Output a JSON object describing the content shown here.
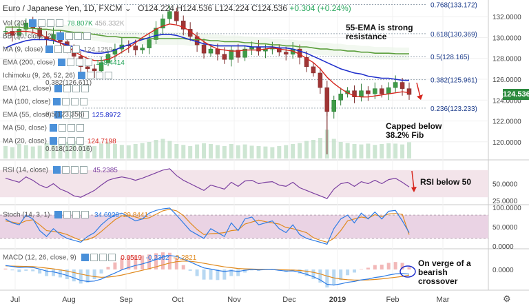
{
  "header": {
    "symbol": "Euro / Japanese Yen, 1D, FXCM",
    "ohlc": "O124.224 H124.536 L124.224 C124.536",
    "change": "+0.304 (+0.24%)"
  },
  "indicators_main": [
    {
      "label": "Vol (20)",
      "value": "78.807K",
      "value2": "456.332K",
      "color": "#26a65b"
    },
    {
      "label": "BB (20, close, 2)",
      "value": "",
      "color": "#888"
    },
    {
      "label": "MA (9, close)",
      "value": "124.1259",
      "color": "#888"
    },
    {
      "label": "EMA (200, close)",
      "value": "128.4414",
      "color": "#26a65b"
    },
    {
      "label": "Ichimoku (9, 26, 52, 26)",
      "value": "",
      "color": "#888"
    },
    {
      "label": "EMA (21, close)",
      "value": "",
      "color": "#888"
    },
    {
      "label": "MA (100, close)",
      "value": "",
      "color": "#888"
    },
    {
      "label": "EMA (55, close)",
      "value": "125.8972",
      "color": "#1f2fcc"
    },
    {
      "label": "MA (50, close)",
      "value": "",
      "color": "#888"
    },
    {
      "label": "MA (20, close)",
      "value": "124.7198",
      "color": "#d6261e"
    }
  ],
  "fib_inline": [
    {
      "text": "0.382(126.611)"
    },
    {
      "text": "0.5(123.356)"
    },
    {
      "text": "0.618(120.016)"
    }
  ],
  "annotations": {
    "ema_note": "55-EMA is strong resistance",
    "fib_note": "Capped below 38.2% Fib",
    "rsi_note": "RSI below 50",
    "macd_note": "On verge of a bearish crossover"
  },
  "last_price": "124.536",
  "panes": {
    "rsi": {
      "label": "RSI (14, close)",
      "value": "45.2385",
      "value_color": "#7b3fa0"
    },
    "stoch": {
      "label": "Stoch (14, 3, 1)",
      "k": "34.6920",
      "d": "29.8441",
      "k_color": "#2c7be5",
      "d_color": "#e08a1e"
    },
    "macd": {
      "label": "MACD (12, 26, close, 9)",
      "hist": "0.0519",
      "macd": "-0.2302",
      "signal": "-0.2821",
      "hist_color": "#d6261e",
      "macd_color": "#2c7be5",
      "signal_color": "#e08a1e"
    }
  },
  "chart_data": {
    "type": "line",
    "title": "Euro / Japanese Yen, 1D, FXCM",
    "x_ticks": [
      "Jul",
      "Aug",
      "Sep",
      "Oct",
      "Nov",
      "Dec",
      "2019",
      "Feb",
      "Mar"
    ],
    "price_axis": {
      "ticks": [
        120.0,
        122.0,
        124.0,
        126.0,
        128.0,
        130.0,
        132.0
      ],
      "range": [
        118.4,
        133.6
      ]
    },
    "fib_levels": [
      {
        "ratio": "0.768",
        "value": 133.172,
        "label": "0.768(133.172)"
      },
      {
        "ratio": "0.618",
        "value": 130.369,
        "label": "0.618(130.369)"
      },
      {
        "ratio": "0.5",
        "value": 128.165,
        "label": "0.5(128.165)"
      },
      {
        "ratio": "0.382",
        "value": 125.961,
        "label": "0.382(125.961)"
      },
      {
        "ratio": "0.236",
        "value": 123.233,
        "label": "0.236(123.233)"
      }
    ],
    "series": [
      {
        "name": "Close",
        "color": "#333333",
        "values": [
          130.6,
          130.2,
          130.8,
          131.4,
          130.9,
          130.1,
          129.8,
          130.3,
          129.6,
          129.0,
          128.2,
          127.2,
          127.0,
          126.8,
          127.6,
          128.4,
          128.9,
          129.3,
          129.2,
          128.8,
          129.0,
          129.8,
          130.9,
          131.8,
          132.5,
          131.6,
          130.8,
          130.1,
          129.3,
          128.5,
          128.9,
          128.4,
          127.9,
          128.8,
          128.1,
          128.9,
          129.1,
          128.7,
          128.9,
          129.0,
          128.6,
          128.4,
          128.9,
          128.1,
          127.2,
          126.6,
          125.2,
          122.9,
          124.0,
          124.6,
          124.9,
          124.3,
          124.9,
          124.6,
          125.1,
          124.6,
          125.2,
          125.7,
          125.1,
          124.536
        ]
      },
      {
        "name": "EMA 55",
        "color": "#1f2fcc",
        "values": [
          129.0,
          129.3,
          129.5,
          129.7,
          129.8,
          129.8,
          129.8,
          129.7,
          129.5,
          129.3,
          129.1,
          128.8,
          128.6,
          128.5,
          128.5,
          128.6,
          128.8,
          129.1,
          129.3,
          129.6,
          129.8,
          130.0,
          130.2,
          130.3,
          130.3,
          130.2,
          130.0,
          129.8,
          129.6,
          129.4,
          129.3,
          129.2,
          129.2,
          129.2,
          129.2,
          129.2,
          129.1,
          129.1,
          129.1,
          129.1,
          129.0,
          129.0,
          128.9,
          128.7,
          128.5,
          128.2,
          127.9,
          127.6,
          127.3,
          127.0,
          126.8,
          126.6,
          126.5,
          126.3,
          126.2,
          126.1,
          126.1,
          126.0,
          125.9,
          125.8972
        ]
      },
      {
        "name": "MA 20",
        "color": "#d6261e",
        "values": [
          130.4,
          130.5,
          130.6,
          130.6,
          130.5,
          130.3,
          130.0,
          129.8,
          129.5,
          129.1,
          128.7,
          128.3,
          128.0,
          127.8,
          127.8,
          127.9,
          128.2,
          128.6,
          129.0,
          129.5,
          130.0,
          130.4,
          130.8,
          131.1,
          131.3,
          131.2,
          131.0,
          130.6,
          130.1,
          129.6,
          129.2,
          128.9,
          128.8,
          128.7,
          128.7,
          128.8,
          128.8,
          128.8,
          128.9,
          129.0,
          128.9,
          128.8,
          128.7,
          128.4,
          128.0,
          127.6,
          127.0,
          126.2,
          125.6,
          125.1,
          124.7,
          124.4,
          124.3,
          124.3,
          124.4,
          124.5,
          124.6,
          124.7,
          124.8,
          124.7198
        ]
      },
      {
        "name": "EMA 200",
        "color": "#5a9e3a",
        "values": [
          131.0,
          131.0,
          131.0,
          130.9,
          130.9,
          130.8,
          130.8,
          130.7,
          130.7,
          130.6,
          130.5,
          130.5,
          130.4,
          130.3,
          130.2,
          130.1,
          130.1,
          130.0,
          130.0,
          130.0,
          129.9,
          129.9,
          129.9,
          129.9,
          129.9,
          129.9,
          129.9,
          129.8,
          129.8,
          129.8,
          129.7,
          129.7,
          129.6,
          129.6,
          129.6,
          129.5,
          129.5,
          129.4,
          129.4,
          129.3,
          129.3,
          129.2,
          129.2,
          129.1,
          129.1,
          129.0,
          128.9,
          128.9,
          128.8,
          128.8,
          128.7,
          128.7,
          128.6,
          128.6,
          128.5,
          128.5,
          128.5,
          128.45,
          128.44,
          128.4414
        ]
      },
      {
        "name": "RSI",
        "color": "#7b3fa0",
        "values": [
          58,
          55,
          52,
          60,
          55,
          48,
          44,
          50,
          42,
          38,
          32,
          30,
          35,
          40,
          48,
          55,
          58,
          60,
          58,
          55,
          58,
          62,
          66,
          70,
          72,
          62,
          55,
          50,
          45,
          40,
          48,
          45,
          42,
          52,
          46,
          54,
          55,
          50,
          52,
          53,
          48,
          46,
          52,
          44,
          40,
          36,
          32,
          28,
          42,
          50,
          52,
          46,
          53,
          50,
          55,
          50,
          56,
          58,
          52,
          45.2385
        ]
      },
      {
        "name": "Stoch %K",
        "color": "#2c7be5",
        "values": [
          70,
          60,
          55,
          80,
          70,
          40,
          25,
          45,
          30,
          20,
          15,
          10,
          25,
          35,
          55,
          70,
          80,
          85,
          75,
          65,
          70,
          85,
          92,
          96,
          98,
          80,
          60,
          40,
          30,
          20,
          45,
          35,
          25,
          60,
          40,
          70,
          75,
          55,
          60,
          65,
          45,
          35,
          55,
          30,
          20,
          15,
          10,
          5,
          45,
          70,
          80,
          60,
          85,
          70,
          88,
          70,
          90,
          92,
          65,
          34.692
        ]
      },
      {
        "name": "Stoch %D",
        "color": "#e08a1e",
        "values": [
          65,
          62,
          58,
          65,
          68,
          55,
          40,
          38,
          35,
          30,
          22,
          15,
          17,
          24,
          38,
          53,
          68,
          78,
          80,
          75,
          70,
          73,
          82,
          91,
          95,
          91,
          79,
          60,
          43,
          30,
          32,
          33,
          35,
          40,
          42,
          57,
          62,
          67,
          63,
          60,
          57,
          48,
          45,
          40,
          35,
          22,
          15,
          10,
          20,
          40,
          65,
          70,
          75,
          72,
          81,
          76,
          83,
          84,
          82,
          29.8441
        ]
      },
      {
        "name": "MACD",
        "color": "#2c7be5",
        "values": [
          0.2,
          0.15,
          0.1,
          0.12,
          0.1,
          0.02,
          -0.08,
          -0.12,
          -0.2,
          -0.3,
          -0.42,
          -0.55,
          -0.6,
          -0.58,
          -0.48,
          -0.32,
          -0.18,
          -0.02,
          0.1,
          0.2,
          0.28,
          0.38,
          0.5,
          0.62,
          0.7,
          0.65,
          0.52,
          0.38,
          0.22,
          0.08,
          0.02,
          -0.05,
          -0.1,
          -0.06,
          -0.1,
          -0.04,
          0.0,
          -0.02,
          -0.01,
          0.0,
          -0.04,
          -0.08,
          -0.07,
          -0.14,
          -0.24,
          -0.36,
          -0.52,
          -0.74,
          -0.78,
          -0.72,
          -0.64,
          -0.6,
          -0.52,
          -0.48,
          -0.4,
          -0.36,
          -0.28,
          -0.22,
          -0.2,
          -0.2302
        ]
      },
      {
        "name": "Signal",
        "color": "#e08a1e",
        "values": [
          0.18,
          0.17,
          0.16,
          0.15,
          0.14,
          0.11,
          0.07,
          0.03,
          -0.02,
          -0.08,
          -0.15,
          -0.23,
          -0.3,
          -0.36,
          -0.39,
          -0.38,
          -0.34,
          -0.28,
          -0.2,
          -0.12,
          -0.04,
          0.04,
          0.13,
          0.23,
          0.32,
          0.39,
          0.42,
          0.41,
          0.37,
          0.31,
          0.25,
          0.19,
          0.13,
          0.09,
          0.05,
          0.03,
          0.02,
          0.01,
          0.0,
          0.0,
          -0.01,
          -0.02,
          -0.03,
          -0.05,
          -0.09,
          -0.14,
          -0.22,
          -0.33,
          -0.42,
          -0.48,
          -0.51,
          -0.53,
          -0.53,
          -0.52,
          -0.5,
          -0.47,
          -0.43,
          -0.39,
          -0.35,
          -0.2821
        ]
      },
      {
        "name": "Volume",
        "color": "#b9dcc0",
        "values": [
          60,
          55,
          70,
          65,
          58,
          62,
          75,
          68,
          72,
          80,
          85,
          70,
          65,
          60,
          72,
          78,
          70,
          66,
          64,
          70,
          75,
          80,
          90,
          95,
          85,
          70,
          66,
          60,
          68,
          74,
          70,
          65,
          60,
          70,
          64,
          68,
          62,
          60,
          58,
          55,
          60,
          65,
          70,
          75,
          85,
          90,
          100,
          140,
          95,
          80,
          75,
          70,
          68,
          72,
          66,
          70,
          74,
          72,
          68,
          78.807
        ]
      }
    ]
  }
}
